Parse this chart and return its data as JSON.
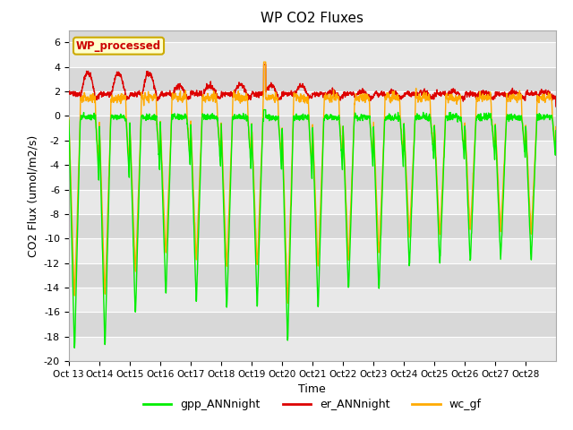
{
  "title": "WP CO2 Fluxes",
  "xlabel": "Time",
  "ylabel": "CO2 Flux (umol/m2/s)",
  "ylim": [
    -20,
    7
  ],
  "yticks": [
    -20,
    -18,
    -16,
    -14,
    -12,
    -10,
    -8,
    -6,
    -4,
    -2,
    0,
    2,
    4,
    6
  ],
  "xtick_labels": [
    "Oct 13",
    "Oct 14",
    "Oct 15",
    "Oct 16",
    "Oct 17",
    "Oct 18",
    "Oct 19",
    "Oct 20",
    "Oct 21",
    "Oct 22",
    "Oct 23",
    "Oct 24",
    "Oct 25",
    "Oct 26",
    "Oct 27",
    "Oct 28"
  ],
  "colors": {
    "gpp": "#00ee00",
    "er": "#dd0000",
    "wc": "#ffaa00"
  },
  "legend_labels": [
    "gpp_ANNnight",
    "er_ANNnight",
    "wc_gf"
  ],
  "wp_label": "WP_processed",
  "wp_label_color": "#cc0000",
  "wp_box_color": "#ffffcc",
  "background_color": "#d8d8d8",
  "grid_color": "#ffffff",
  "linewidth": 1.0,
  "num_days": 16,
  "points_per_day": 144,
  "figsize": [
    6.4,
    4.8
  ],
  "dpi": 100
}
